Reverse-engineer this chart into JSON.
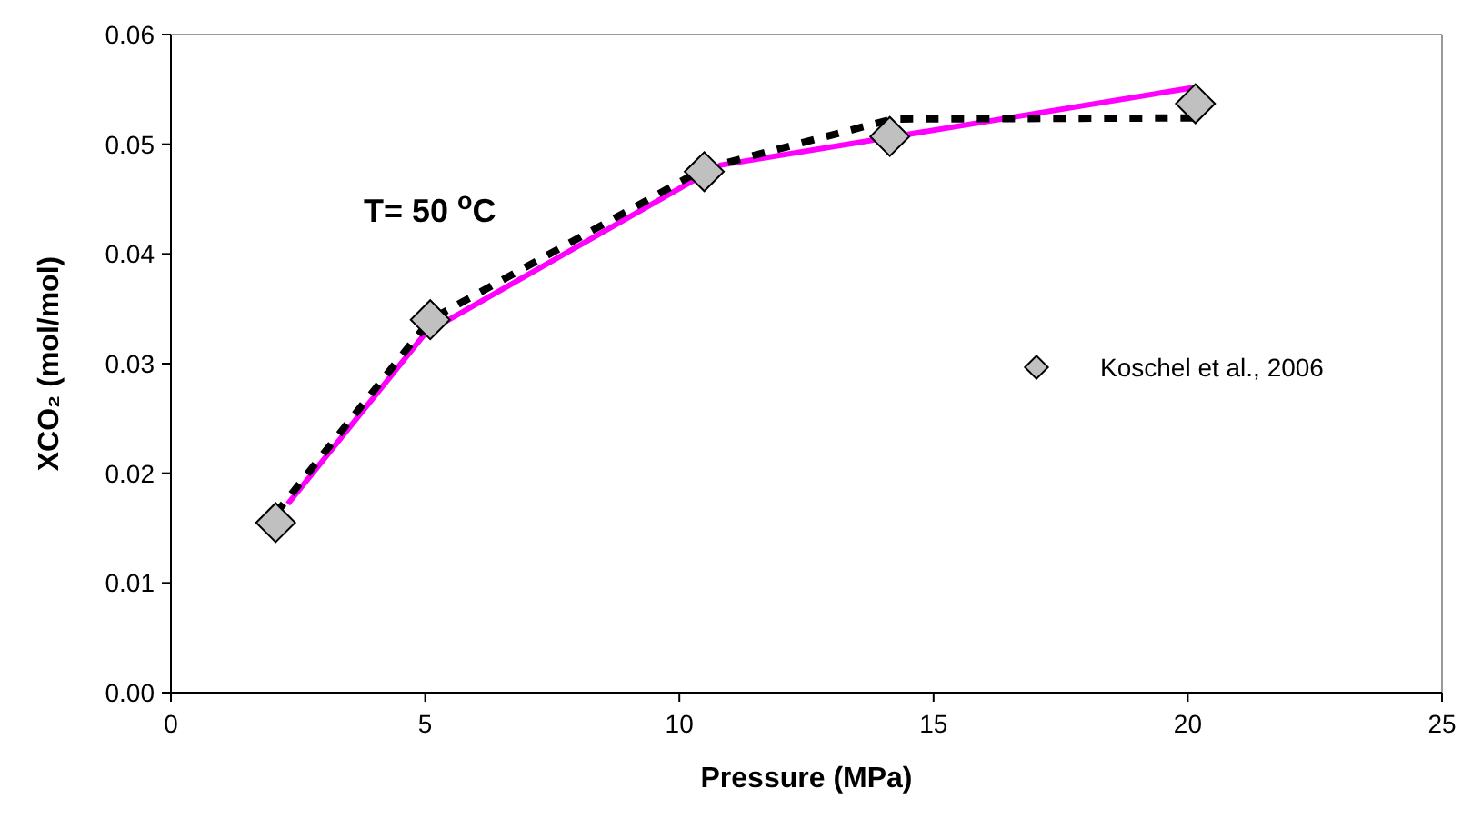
{
  "chart_data": {
    "type": "line",
    "xlabel": "Pressure (MPa)",
    "ylabel": "XCO₂ (mol/mol)",
    "annotations": [
      "T= 50 $^{o}$C"
    ],
    "xlim": [
      0,
      25
    ],
    "xticks": [
      0,
      5,
      10,
      15,
      20,
      25
    ],
    "ylim": [
      0,
      0.06
    ],
    "yticks": [
      {
        "value": 0,
        "label": "0.00"
      },
      {
        "value": 0.01,
        "label": "0.01"
      },
      {
        "value": 0.02,
        "label": "0.02"
      },
      {
        "value": 0.03,
        "label": "0.03"
      },
      {
        "value": 0.04,
        "label": "0.04"
      },
      {
        "value": 0.05,
        "label": "0.05"
      },
      {
        "value": 0.06,
        "label": "0.06"
      }
    ],
    "grid": false,
    "legend": "right",
    "series": [
      {
        "name": "Koschel et al., 2006",
        "type": "scatter",
        "marker": "diamond",
        "color": "#c0c0c0",
        "x": [
          2.06,
          5.1,
          10.49,
          14.14,
          20.15
        ],
        "values": [
          0.0155,
          0.034,
          0.0475,
          0.0507,
          0.0537
        ]
      },
      {
        "color": "#ff00ff",
        "line_style": "solid",
        "x": [
          2.3,
          5.01,
          10.81,
          20.15
        ],
        "values": [
          0.0172,
          0.0328,
          0.0481,
          0.0552
        ]
      },
      {
        "color": "#000000",
        "line_style": "dashed",
        "x": [
          2.06,
          5.1,
          10.5,
          14.2,
          20.15
        ],
        "values": [
          0.0163,
          0.034,
          0.0478,
          0.0523,
          0.0524
        ]
      }
    ]
  }
}
